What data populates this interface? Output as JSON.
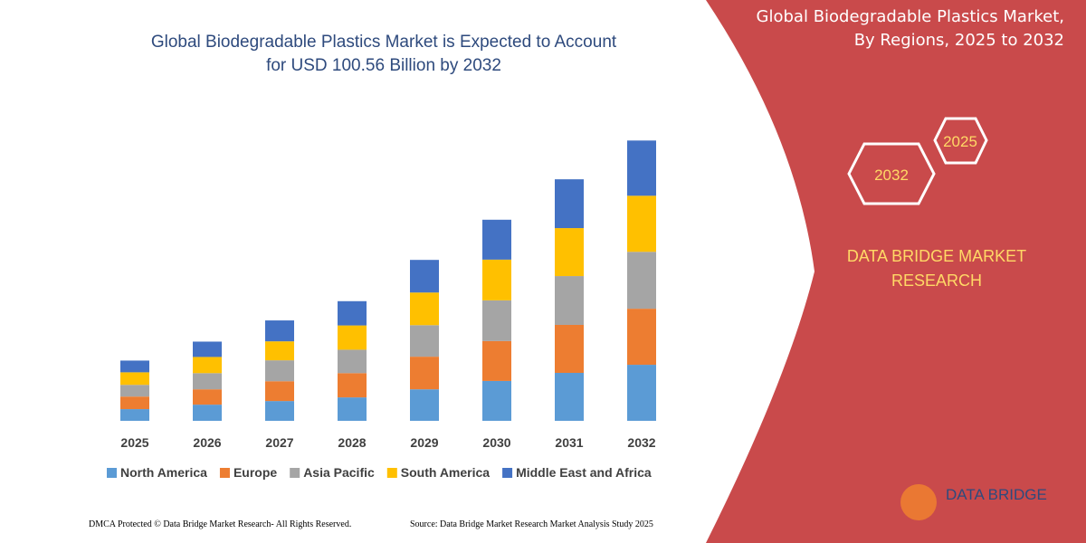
{
  "chart_data": {
    "type": "stacked_bar",
    "title": "Global Biodegradable Plastics Market is Expected to Account for USD 100.56 Billion by 2032",
    "categories": [
      "2025",
      "2026",
      "2027",
      "2028",
      "2029",
      "2030",
      "2031",
      "2032"
    ],
    "series": [
      {
        "name": "North America",
        "color": "#5b9bd5",
        "values": [
          4.2,
          5.8,
          7.1,
          8.4,
          11.3,
          14.3,
          17.2,
          20.1
        ]
      },
      {
        "name": "Europe",
        "color": "#ed7d31",
        "values": [
          4.5,
          5.5,
          7.1,
          8.7,
          11.7,
          14.3,
          17.2,
          20.1
        ]
      },
      {
        "name": "Asia Pacific",
        "color": "#a5a5a5",
        "values": [
          4.2,
          5.8,
          7.5,
          8.4,
          11.3,
          14.6,
          17.5,
          20.4
        ]
      },
      {
        "name": "South America",
        "color": "#ffc000",
        "values": [
          4.5,
          5.8,
          6.8,
          8.7,
          11.7,
          14.6,
          17.2,
          20.1
        ]
      },
      {
        "name": "Middle East and Africa",
        "color": "#4472c4",
        "values": [
          4.2,
          5.5,
          7.5,
          8.7,
          11.7,
          14.3,
          17.5,
          19.8
        ]
      }
    ],
    "ylim": [
      0,
      110
    ]
  },
  "panel": {
    "title": "Global Biodegradable Plastics Market, By Regions, 2025 to 2032",
    "hex_start": "2025",
    "hex_end": "2032",
    "brand": "DATA BRIDGE MARKET RESEARCH",
    "logo": "DATA BRIDGE"
  },
  "footer": {
    "left": "DMCA Protected © Data Bridge Market Research-  All Rights Reserved.",
    "right": "Source: Data Bridge Market Research  Market Analysis Study 2025"
  }
}
